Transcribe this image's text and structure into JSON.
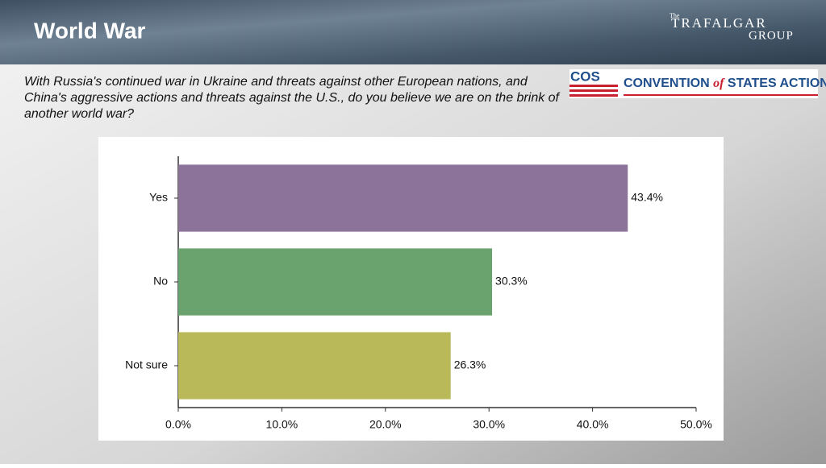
{
  "header": {
    "title": "World War"
  },
  "logos": {
    "trafalgar": {
      "small": "The",
      "name": "TRAFALGAR",
      "group": "GROUP"
    },
    "cos": {
      "mark": "COS",
      "text1": "CONVENTION",
      "of": "of",
      "text2": "STATES ACTION"
    }
  },
  "chart_data": {
    "type": "bar",
    "orientation": "horizontal",
    "title": "With Russia's continued war in Ukraine and threats against other European nations, and China's aggressive actions and threats against the U.S., do you believe we are on the brink of another world war?",
    "categories": [
      "Yes",
      "No",
      "Not sure"
    ],
    "values": [
      43.4,
      30.3,
      26.3
    ],
    "value_labels": [
      "43.4%",
      "30.3%",
      "26.3%"
    ],
    "colors": [
      "#8c7399",
      "#6aa36e",
      "#b9b95a"
    ],
    "xlim": [
      0,
      50
    ],
    "xticks": [
      {
        "value": 0,
        "label": "0.0%"
      },
      {
        "value": 10,
        "label": "10.0%"
      },
      {
        "value": 20,
        "label": "20.0%"
      },
      {
        "value": 30,
        "label": "30.0%"
      },
      {
        "value": 40,
        "label": "40.0%"
      },
      {
        "value": 50,
        "label": "50.0%"
      }
    ],
    "grid": false
  }
}
